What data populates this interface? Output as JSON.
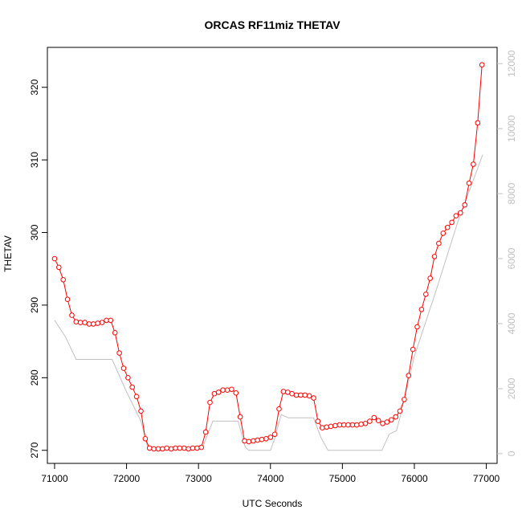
{
  "chart_data": {
    "type": "line",
    "title": "ORCAS RF11miz THETAV",
    "xlabel": "UTC Seconds",
    "ylabel": "THETAV",
    "xlim": [
      70900,
      77150
    ],
    "ylim": [
      268.2,
      325.5
    ],
    "y2lim": [
      -300,
      12500
    ],
    "x_ticks": [
      71000,
      72000,
      73000,
      74000,
      75000,
      76000,
      77000
    ],
    "y_ticks": [
      270,
      280,
      290,
      300,
      310,
      320
    ],
    "y2_ticks": [
      0,
      2000,
      4000,
      6000,
      8000,
      10000,
      12000
    ],
    "grid": false,
    "legend": "none",
    "series": [
      {
        "color": "#ff0000",
        "style": "line-with-open-circles",
        "axis": "left",
        "x": [
          71000,
          71060,
          71120,
          71180,
          71240,
          71300,
          71360,
          71420,
          71480,
          71540,
          71600,
          71660,
          71720,
          71780,
          71840,
          71900,
          71960,
          72020,
          72080,
          72140,
          72200,
          72260,
          72320,
          72380,
          72440,
          72500,
          72560,
          72620,
          72680,
          72740,
          72800,
          72860,
          72920,
          72980,
          73040,
          73100,
          73160,
          73220,
          73280,
          73340,
          73400,
          73460,
          73520,
          73580,
          73640,
          73700,
          73760,
          73820,
          73880,
          73940,
          74000,
          74060,
          74120,
          74180,
          74240,
          74300,
          74360,
          74420,
          74480,
          74540,
          74600,
          74660,
          74720,
          74780,
          74840,
          74900,
          74960,
          75020,
          75080,
          75140,
          75200,
          75260,
          75320,
          75380,
          75440,
          75500,
          75560,
          75620,
          75680,
          75740,
          75800,
          75860,
          75920,
          75980,
          76040,
          76100,
          76160,
          76220,
          76280,
          76340,
          76400,
          76460,
          76520,
          76580,
          76640,
          76700,
          76760,
          76820,
          76880,
          76940
        ],
        "y": [
          296.4,
          295.2,
          293.5,
          290.8,
          288.6,
          287.7,
          287.6,
          287.6,
          287.4,
          287.4,
          287.5,
          287.6,
          287.9,
          287.9,
          286.2,
          283.4,
          281.3,
          280.0,
          278.7,
          277.4,
          275.4,
          271.6,
          270.3,
          270.2,
          270.2,
          270.2,
          270.3,
          270.2,
          270.3,
          270.3,
          270.3,
          270.2,
          270.3,
          270.3,
          270.4,
          272.5,
          276.6,
          277.8,
          278.0,
          278.3,
          278.3,
          278.4,
          277.9,
          274.6,
          271.3,
          271.2,
          271.3,
          271.4,
          271.5,
          271.6,
          271.8,
          272.2,
          275.7,
          278.1,
          278.0,
          277.8,
          277.6,
          277.6,
          277.6,
          277.5,
          277.2,
          274.0,
          273.1,
          273.2,
          273.3,
          273.4,
          273.5,
          273.5,
          273.5,
          273.5,
          273.5,
          273.6,
          273.7,
          274.0,
          274.5,
          274.1,
          273.7,
          273.9,
          274.2,
          274.6,
          275.4,
          277.0,
          280.3,
          283.9,
          287.0,
          289.4,
          291.5,
          293.7,
          296.7,
          298.5,
          299.9,
          300.7,
          301.4,
          302.3,
          302.7,
          303.8,
          306.8,
          309.4,
          315.1,
          323.1
        ]
      },
      {
        "color": "#c0c0c0",
        "style": "line",
        "axis": "right",
        "x": [
          71000,
          71150,
          71300,
          71800,
          72000,
          72200,
          72300,
          73050,
          73200,
          73550,
          73650,
          73700,
          74000,
          74050,
          74150,
          74250,
          74600,
          74700,
          74800,
          75550,
          75650,
          75750,
          75800,
          76000,
          76300,
          76600,
          76950
        ],
        "y": [
          4100,
          3600,
          2900,
          2900,
          1900,
          1000,
          150,
          150,
          1000,
          1000,
          200,
          100,
          100,
          400,
          1200,
          1100,
          1100,
          500,
          100,
          100,
          600,
          700,
          1100,
          3000,
          5000,
          7100,
          9200
        ]
      }
    ]
  }
}
